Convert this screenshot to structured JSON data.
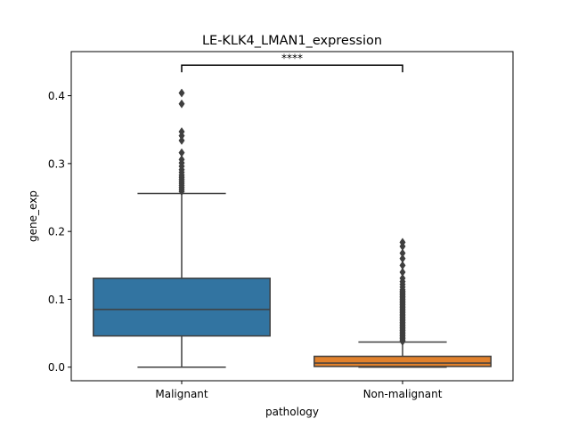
{
  "chart_data": {
    "type": "box",
    "title": "LE-KLK4_LMAN1_expression",
    "xlabel": "pathology",
    "ylabel": "gene_exp",
    "categories": [
      "Malignant",
      "Non-malignant"
    ],
    "ylim": [
      -0.02,
      0.465
    ],
    "yticks": [
      0.0,
      0.1,
      0.2,
      0.3,
      0.4
    ],
    "ytick_labels": [
      "0.0",
      "0.1",
      "0.2",
      "0.3",
      "0.4"
    ],
    "grid": false,
    "boxes": [
      {
        "name": "Malignant",
        "color": "#3274a1",
        "whisker_low": 0.0,
        "q1": 0.046,
        "median": 0.085,
        "q3": 0.131,
        "whisker_high": 0.256,
        "outliers": [
          0.259,
          0.262,
          0.265,
          0.268,
          0.271,
          0.274,
          0.277,
          0.28,
          0.283,
          0.287,
          0.291,
          0.296,
          0.301,
          0.306,
          0.316,
          0.334,
          0.341,
          0.347,
          0.388,
          0.404
        ]
      },
      {
        "name": "Non-malignant",
        "color": "#e1812c",
        "whisker_low": 0.0,
        "q1": 0.001,
        "median": 0.006,
        "q3": 0.016,
        "whisker_high": 0.037,
        "outliers": [
          0.038,
          0.04,
          0.042,
          0.044,
          0.046,
          0.048,
          0.05,
          0.052,
          0.054,
          0.056,
          0.058,
          0.06,
          0.062,
          0.064,
          0.066,
          0.068,
          0.07,
          0.072,
          0.074,
          0.076,
          0.078,
          0.08,
          0.082,
          0.084,
          0.086,
          0.088,
          0.09,
          0.092,
          0.094,
          0.096,
          0.098,
          0.1,
          0.102,
          0.104,
          0.106,
          0.108,
          0.11,
          0.112,
          0.114,
          0.118,
          0.122,
          0.126,
          0.131,
          0.14,
          0.15,
          0.16,
          0.168,
          0.178,
          0.184
        ]
      }
    ],
    "annotation": {
      "text": "****",
      "y": 0.445,
      "from": "Malignant",
      "to": "Non-malignant"
    }
  }
}
